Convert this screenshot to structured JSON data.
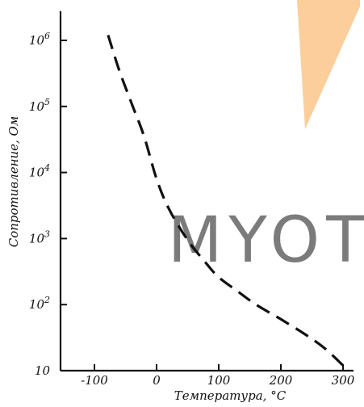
{
  "chart_data": {
    "type": "line",
    "title": "",
    "xlabel": "Температура, °C",
    "ylabel": "Сопротивление, Ом",
    "x_ticks": [
      -100,
      0,
      100,
      200,
      300
    ],
    "x_tick_labels": [
      "-100",
      "0",
      "100",
      "200",
      "300"
    ],
    "y_scale": "log",
    "y_ticks": [
      10,
      100,
      1000,
      10000,
      100000,
      1000000
    ],
    "y_tick_labels": [
      {
        "base": "10",
        "exp": ""
      },
      {
        "base": "10",
        "exp": "2"
      },
      {
        "base": "10",
        "exp": "3"
      },
      {
        "base": "10",
        "exp": "4"
      },
      {
        "base": "10",
        "exp": "5"
      },
      {
        "base": "10",
        "exp": "6"
      }
    ],
    "xlim": [
      -160,
      300
    ],
    "ylim": [
      10,
      3000000
    ],
    "grid": false,
    "line_style": "dashed",
    "series": [
      {
        "x": [
          -78,
          -60,
          -40,
          -20,
          0,
          20,
          50,
          80,
          100,
          130,
          160,
          200,
          240,
          270,
          300
        ],
        "y": [
          1200000,
          350000,
          110000,
          35000,
          8000,
          2800,
          950,
          420,
          260,
          160,
          100,
          60,
          35,
          22,
          12
        ]
      }
    ],
    "line_color": "#111111"
  },
  "watermark": {
    "text": "MYOT",
    "color": "#c8c8c8",
    "accent_color": "#f7a64a"
  }
}
